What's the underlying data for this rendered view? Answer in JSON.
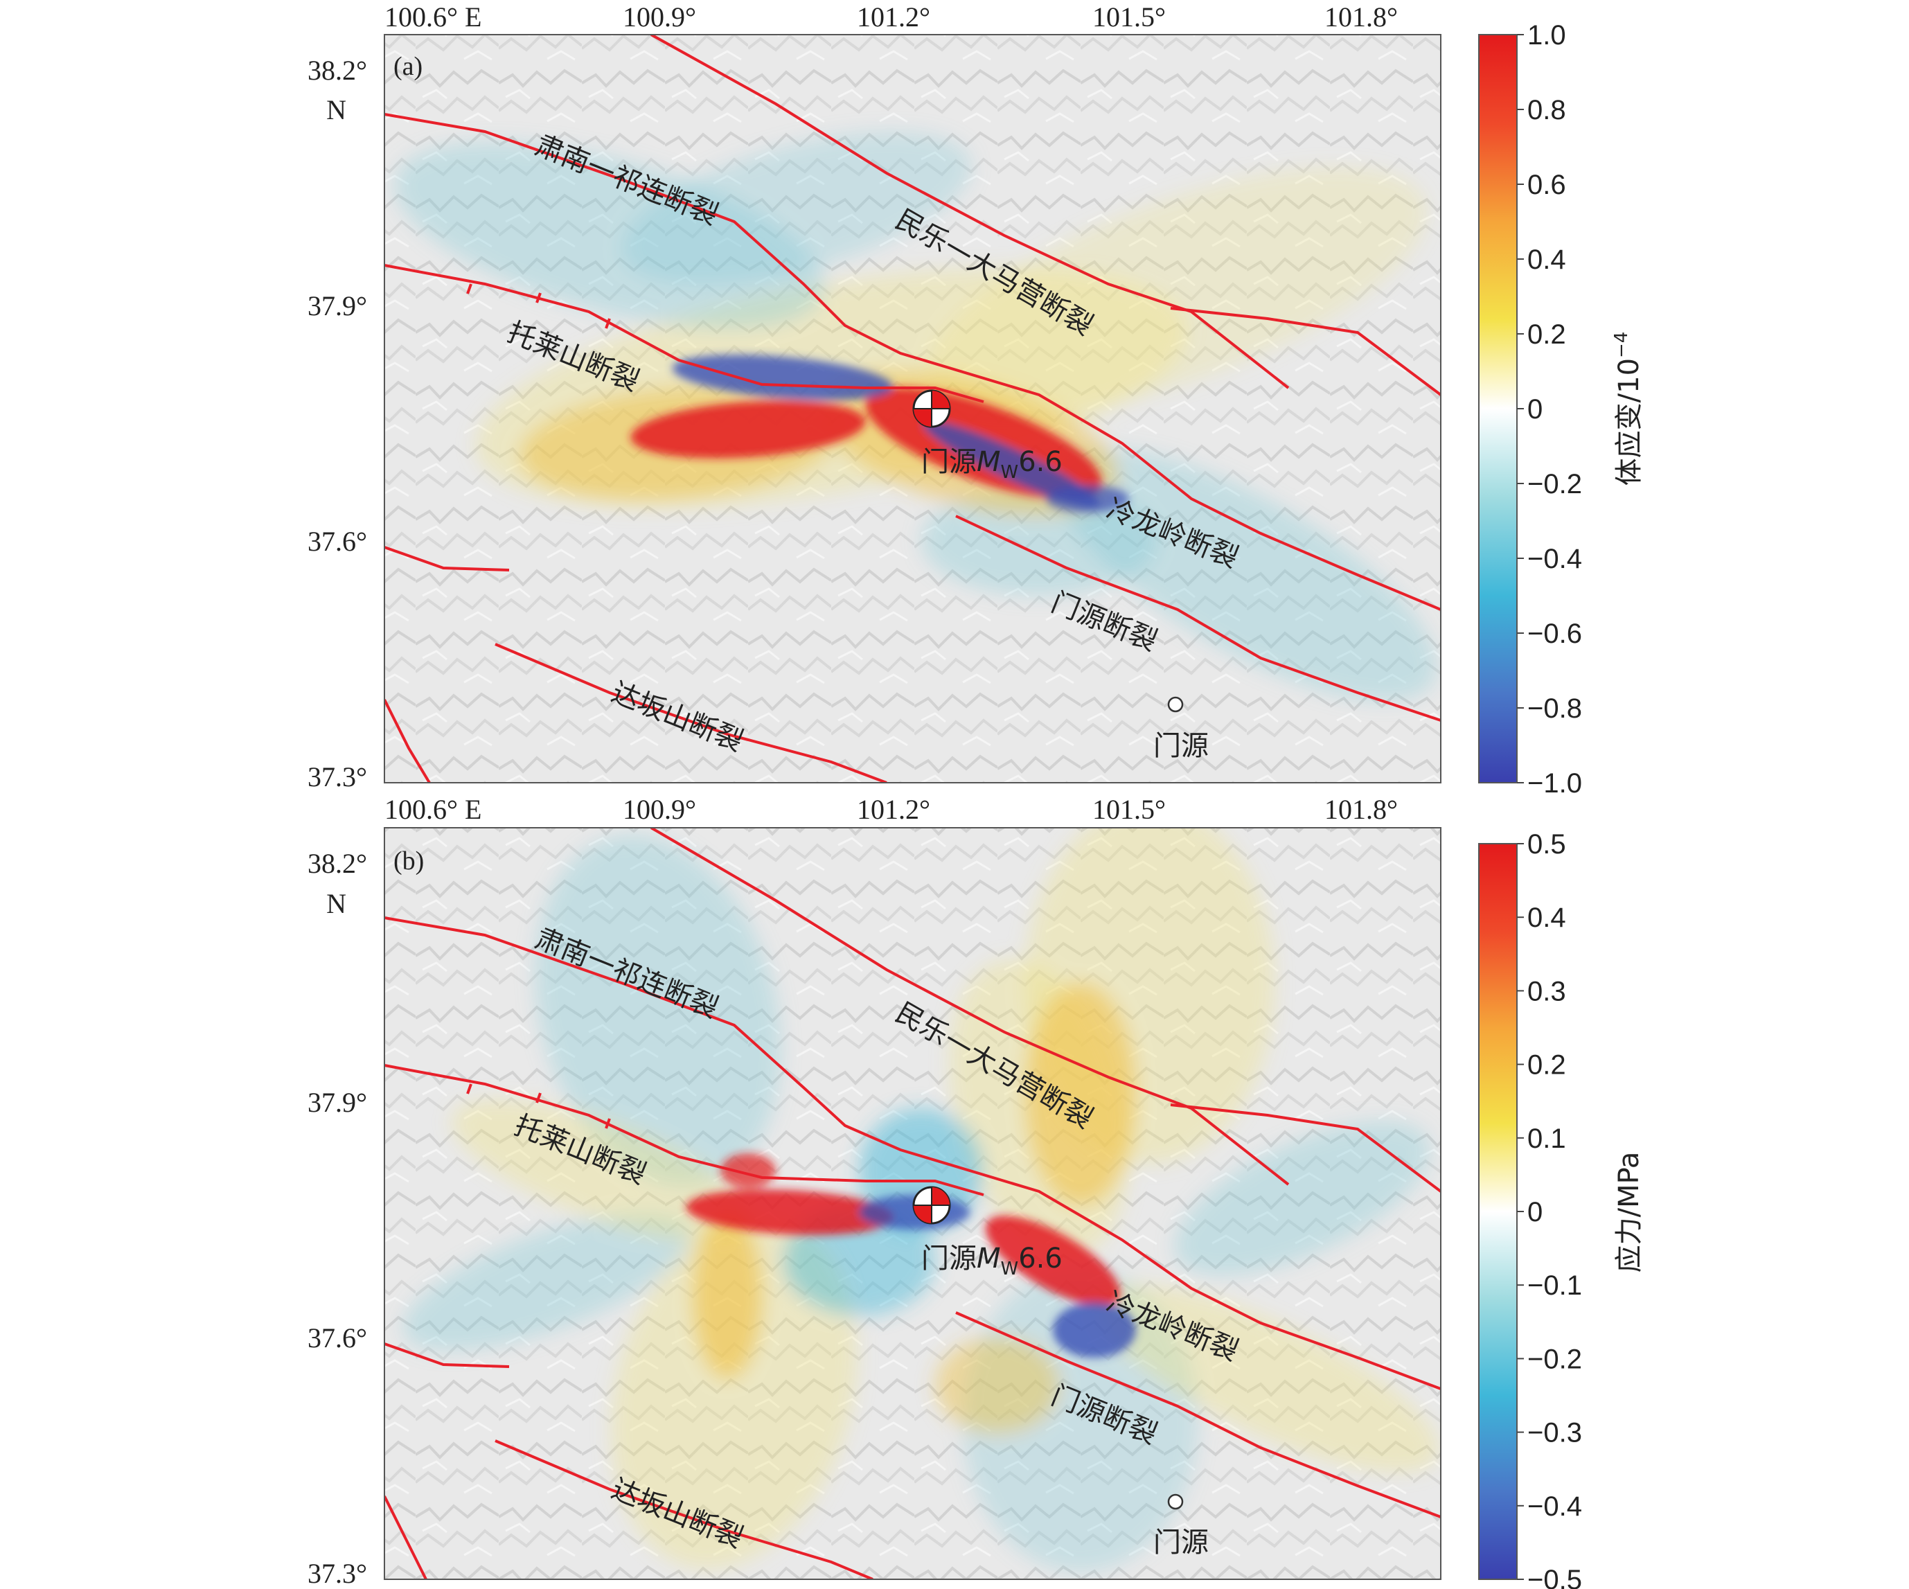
{
  "figure": {
    "panels": [
      {
        "tag": "(a)",
        "top_ticks": [
          "100.6° E",
          "100.9°",
          "101.2°",
          "101.5°",
          "101.8°"
        ],
        "left_ticks": [
          "38.2°",
          "N",
          "37.9°",
          "37.6°",
          "37.3°"
        ],
        "fault_labels": [
          "肃南一祁连断裂",
          "民乐一大马营断裂",
          "托莱山断裂",
          "冷龙岭断裂",
          "门源断裂",
          "达坂山断裂"
        ],
        "epicenter_label": "门源",
        "epicenter_mag_prefix": "M",
        "epicenter_mag_sub": "W",
        "epicenter_mag_value": "6.6",
        "town_label": "门源",
        "colorbar": {
          "ticks": [
            "1.0",
            "0.8",
            "0.6",
            "0.4",
            "0.2",
            "0",
            "−0.2",
            "−0.4",
            "−0.6",
            "−0.8",
            "−1.0"
          ],
          "title_base": "体应变/10",
          "title_exp": "−4",
          "range": [
            -1.0,
            1.0
          ]
        }
      },
      {
        "tag": "(b)",
        "top_ticks": [
          "100.6° E",
          "100.9°",
          "101.2°",
          "101.5°",
          "101.8°"
        ],
        "left_ticks": [
          "38.2°",
          "N",
          "37.9°",
          "37.6°",
          "37.3°"
        ],
        "fault_labels": [
          "肃南一祁连断裂",
          "民乐一大马营断裂",
          "托莱山断裂",
          "冷龙岭断裂",
          "门源断裂",
          "达坂山断裂"
        ],
        "epicenter_label": "门源",
        "epicenter_mag_prefix": "M",
        "epicenter_mag_sub": "W",
        "epicenter_mag_value": "6.6",
        "town_label": "门源",
        "colorbar": {
          "ticks": [
            "0.5",
            "0.4",
            "0.3",
            "0.2",
            "0.1",
            "0",
            "−0.1",
            "−0.2",
            "−0.3",
            "−0.4",
            "−0.5"
          ],
          "title_base": "应力/MPa",
          "title_exp": "",
          "range": [
            -0.5,
            0.5
          ]
        }
      }
    ],
    "colors": {
      "fault": "#e8202a",
      "positive": "#e31a1c",
      "negative": "#3a4fb5",
      "terrain": "#e6e6e6"
    }
  }
}
